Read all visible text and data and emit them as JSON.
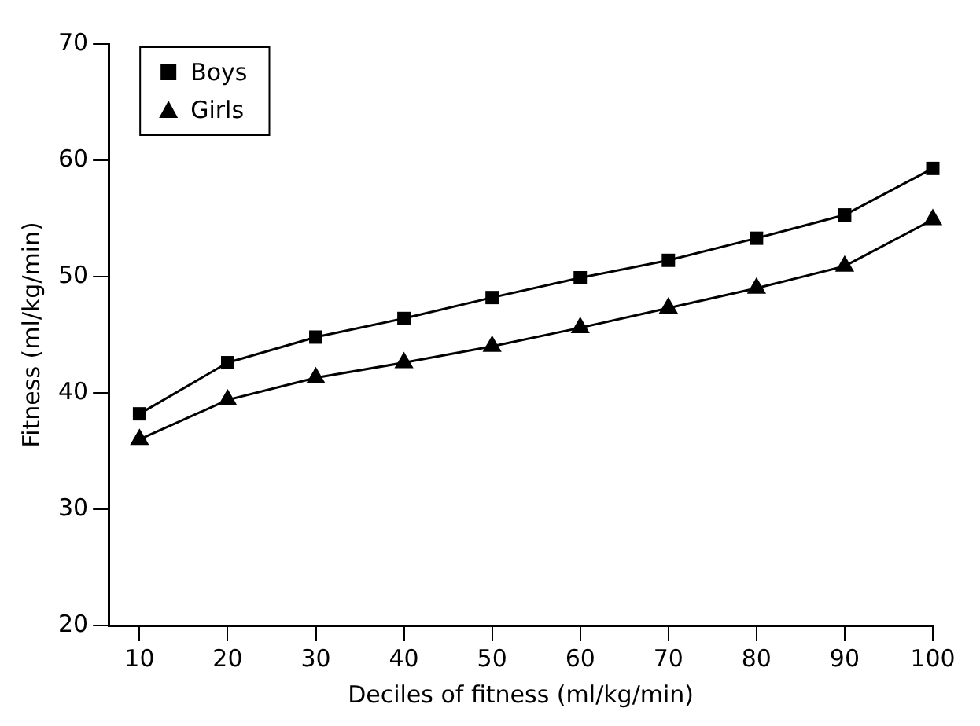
{
  "chart_data": {
    "type": "line",
    "xlabel": "Deciles of fitness (ml/kg/min)",
    "ylabel": "Fitness (ml/kg/min)",
    "x": [
      10,
      20,
      30,
      40,
      50,
      60,
      70,
      80,
      90,
      100
    ],
    "series": [
      {
        "name": "Boys",
        "color": "#000000",
        "marker": "square",
        "values": [
          38.2,
          42.6,
          44.8,
          46.4,
          48.2,
          49.9,
          51.4,
          53.3,
          55.3,
          59.3
        ]
      },
      {
        "name": "Girls",
        "color": "#000000",
        "marker": "triangle",
        "values": [
          36.0,
          39.4,
          41.3,
          42.6,
          44.0,
          45.6,
          47.3,
          49.0,
          50.9,
          54.9
        ]
      }
    ],
    "xlim": [
      6.5,
      100
    ],
    "xticks": [
      10,
      20,
      30,
      40,
      50,
      60,
      70,
      80,
      90,
      100
    ],
    "ylim": [
      20,
      70
    ],
    "yticks": [
      20,
      30,
      40,
      50,
      60,
      70
    ],
    "grid": false,
    "legend": "top left",
    "line_style": "solid"
  }
}
